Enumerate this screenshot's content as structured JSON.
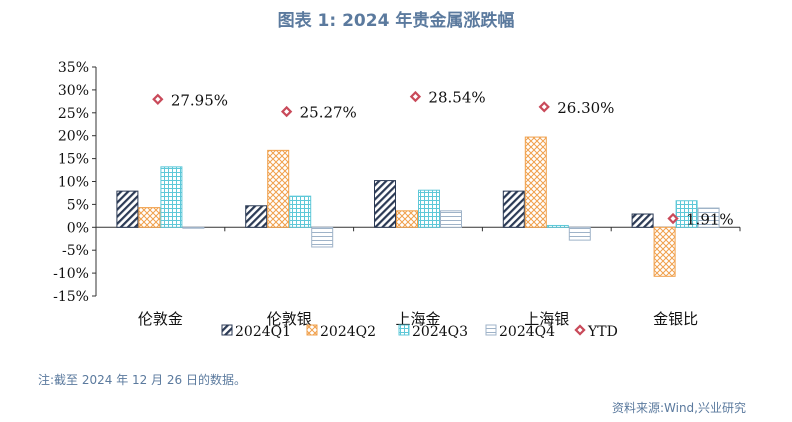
{
  "title": "图表 1:  2024 年贵金属涨跌幅",
  "note": "注:截至 2024 年 12 月 26 日的数据。",
  "source": "资料来源:Wind,兴业研究",
  "chart_data": {
    "type": "bar",
    "categories": [
      "伦敦金",
      "伦敦银",
      "上海金",
      "上海银",
      "金银比"
    ],
    "series": [
      {
        "name": "2024Q1",
        "values": [
          7.9,
          4.7,
          10.2,
          7.9,
          2.9
        ],
        "color": "#2b3a55",
        "pattern": "diag"
      },
      {
        "name": "2024Q2",
        "values": [
          4.3,
          16.8,
          3.6,
          19.7,
          -10.7
        ],
        "color": "#f0a04b",
        "pattern": "cross"
      },
      {
        "name": "2024Q3",
        "values": [
          13.2,
          6.8,
          8.1,
          0.4,
          5.8
        ],
        "color": "#5ec8d8",
        "pattern": "grid"
      },
      {
        "name": "2024Q4",
        "values": [
          -0.2,
          -4.3,
          3.6,
          -2.8,
          4.2
        ],
        "color": "#9fb3c8",
        "pattern": "horiz"
      }
    ],
    "ytd": {
      "name": "YTD",
      "values": [
        27.95,
        25.27,
        28.54,
        26.3,
        1.91
      ],
      "labels": [
        "27.95%",
        "25.27%",
        "28.54%",
        "26.30%",
        "1.91%"
      ],
      "color": "#c94a5a"
    },
    "ylim": [
      -15,
      35
    ],
    "yticks": [
      "-15%",
      "-10%",
      "-5%",
      "0%",
      "5%",
      "10%",
      "15%",
      "20%",
      "25%",
      "30%",
      "35%"
    ],
    "legend_position": "bottom"
  }
}
